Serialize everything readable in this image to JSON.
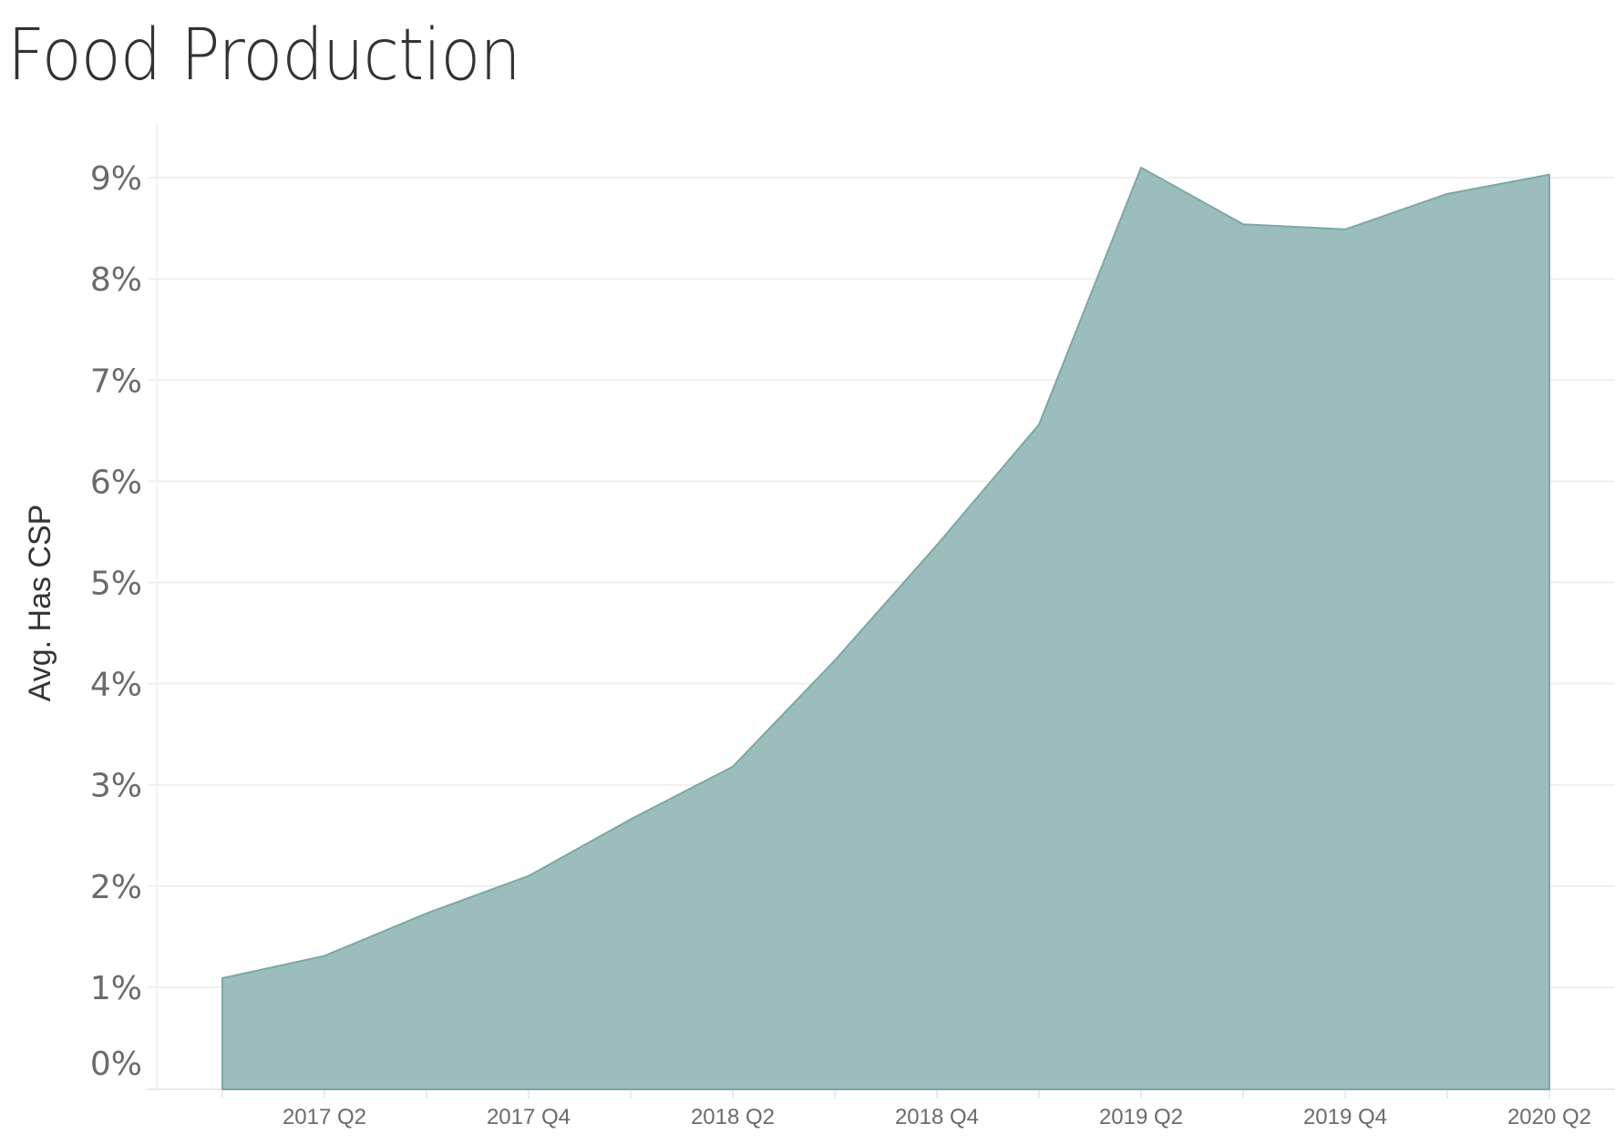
{
  "title": "Food Production",
  "chart_data": {
    "type": "area",
    "title": "Food Production",
    "xlabel": "",
    "ylabel": "Avg. Has CSP",
    "x": [
      "2017 Q1",
      "2017 Q2",
      "2017 Q3",
      "2017 Q4",
      "2018 Q1",
      "2018 Q2",
      "2018 Q3",
      "2018 Q4",
      "2019 Q1",
      "2019 Q2",
      "2019 Q3",
      "2019 Q4",
      "2020 Q1",
      "2020 Q2"
    ],
    "series": [
      {
        "name": "Avg. Has CSP",
        "values": [
          1.09,
          1.31,
          1.73,
          2.1,
          2.66,
          3.18,
          4.23,
          5.37,
          6.56,
          9.1,
          8.54,
          8.49,
          8.84,
          9.03
        ],
        "unit": "%"
      }
    ],
    "x_tick_labels": [
      "2017 Q2",
      "2017 Q4",
      "2018 Q2",
      "2018 Q4",
      "2019 Q2",
      "2019 Q4",
      "2020 Q2"
    ],
    "y_tick_labels": [
      "0%",
      "1%",
      "2%",
      "3%",
      "4%",
      "5%",
      "6%",
      "7%",
      "8%",
      "9%"
    ],
    "ylim": [
      0,
      9.6
    ],
    "grid": true,
    "legend": "none",
    "colors": {
      "fill": "#9bbebd",
      "stroke": "#7aa8a6",
      "grid": "#efefef",
      "axis": "#e8e8e8"
    }
  }
}
